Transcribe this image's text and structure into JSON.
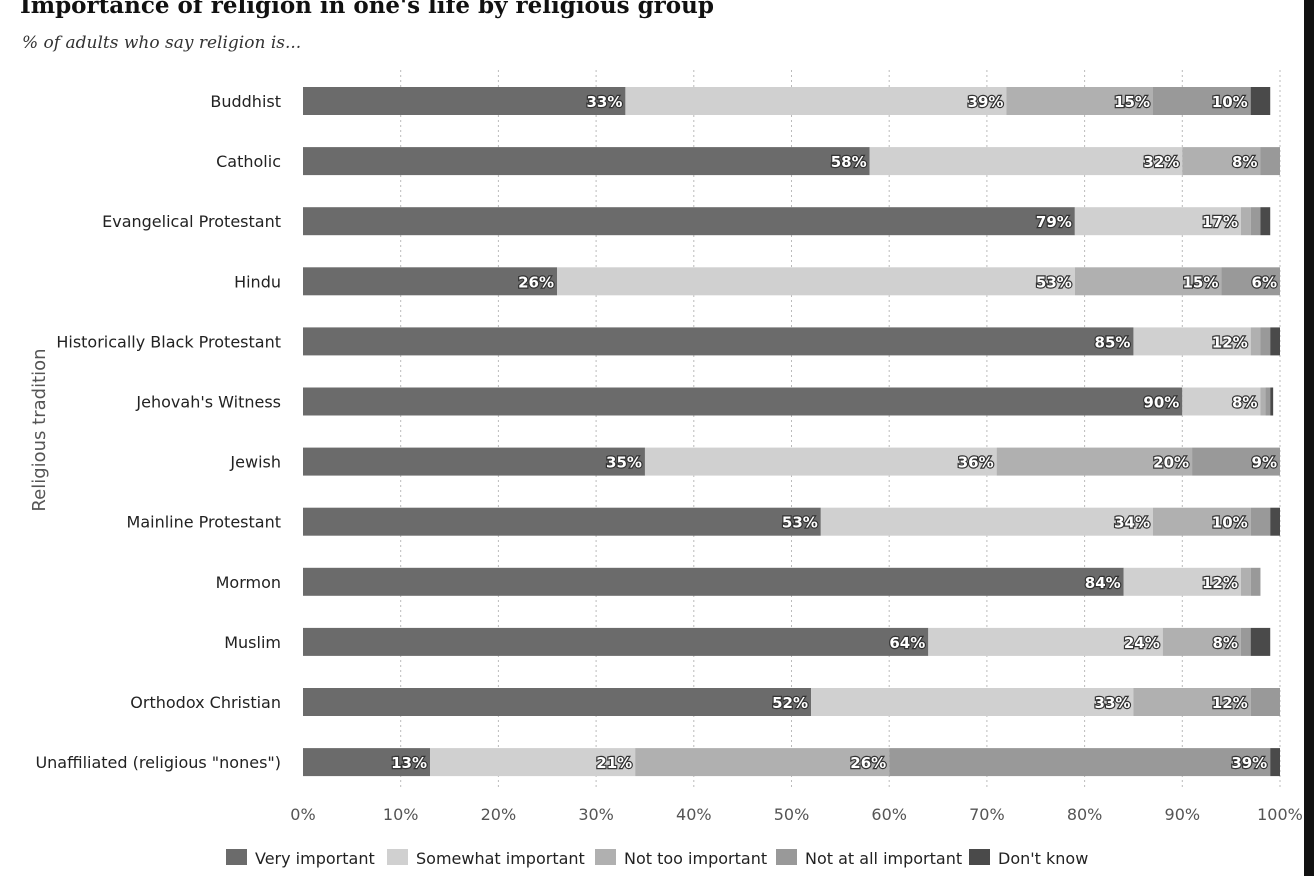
{
  "title": "Importance of religion in one's life by religious group",
  "subtitle": "% of adults who say religion is...",
  "chart_data": {
    "type": "bar",
    "orientation": "horizontal",
    "stacked": true,
    "title": "Importance of religion in one's life by religious group",
    "subtitle": "% of adults who say religion is...",
    "xlabel": "",
    "ylabel": "Religious tradition",
    "xlim": [
      0,
      100
    ],
    "xticks": [
      0,
      10,
      20,
      30,
      40,
      50,
      60,
      70,
      80,
      90,
      100
    ],
    "xtick_labels": [
      "0%",
      "10%",
      "20%",
      "30%",
      "40%",
      "50%",
      "60%",
      "70%",
      "80%",
      "90%",
      "100%"
    ],
    "grid": "vertical dotted",
    "legend_position": "bottom",
    "categories": [
      "Buddhist",
      "Catholic",
      "Evangelical Protestant",
      "Hindu",
      "Historically Black Protestant",
      "Jehovah's Witness",
      "Jewish",
      "Mainline Protestant",
      "Mormon",
      "Muslim",
      "Orthodox Christian",
      "Unaffiliated (religious \"nones\")"
    ],
    "series": [
      {
        "name": "Very important",
        "color": "#6b6b6b",
        "values": [
          33,
          58,
          79,
          26,
          85,
          90,
          35,
          53,
          84,
          64,
          52,
          13
        ]
      },
      {
        "name": "Somewhat important",
        "color": "#d0d0d0",
        "values": [
          39,
          32,
          17,
          53,
          12,
          8,
          36,
          34,
          12,
          24,
          33,
          21
        ]
      },
      {
        "name": "Not too important",
        "color": "#b0b0b0",
        "values": [
          15,
          8,
          1,
          15,
          1,
          0.5,
          20,
          10,
          1,
          8,
          12,
          26
        ]
      },
      {
        "name": "Not at all important",
        "color": "#999999",
        "values": [
          10,
          2,
          1,
          6,
          1,
          0.5,
          9,
          2,
          1,
          1,
          3,
          39
        ]
      },
      {
        "name": "Don't know",
        "color": "#4a4a4a",
        "values": [
          2,
          0,
          1,
          0,
          1,
          0.3,
          0,
          1,
          0,
          2,
          0,
          1
        ]
      }
    ],
    "labels": [
      [
        "33%",
        "39%",
        "15%",
        "10%",
        ""
      ],
      [
        "58%",
        "32%",
        "8%",
        "",
        ""
      ],
      [
        "79%",
        "17%",
        "",
        "",
        ""
      ],
      [
        "26%",
        "53%",
        "15%",
        "6%",
        ""
      ],
      [
        "85%",
        "12%",
        "",
        "",
        ""
      ],
      [
        "90%",
        "8%",
        "",
        "",
        ""
      ],
      [
        "35%",
        "36%",
        "20%",
        "9%",
        ""
      ],
      [
        "53%",
        "34%",
        "10%",
        "",
        ""
      ],
      [
        "84%",
        "12%",
        "",
        "",
        ""
      ],
      [
        "64%",
        "24%",
        "8%",
        "",
        ""
      ],
      [
        "52%",
        "33%",
        "12%",
        "",
        ""
      ],
      [
        "13%",
        "21%",
        "26%",
        "39%",
        ""
      ]
    ]
  }
}
